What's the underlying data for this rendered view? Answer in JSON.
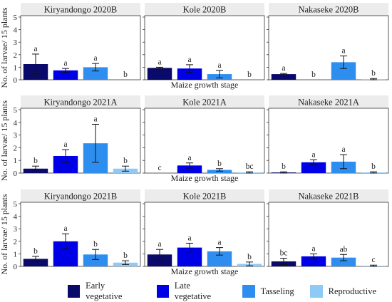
{
  "chart_data": {
    "type": "bar",
    "ylabel": "No. of larvae/ 15 plants",
    "xlabel": "Maize growth stage",
    "ylim": [
      0,
      5
    ],
    "yticks": [
      0,
      1,
      2,
      3,
      4,
      5
    ],
    "grid": false,
    "legend_position": "bottom",
    "stages": [
      "Early vegetative",
      "Late vegetative",
      "Tasseling",
      "Reproductive"
    ],
    "colors": [
      "#0a0a6b",
      "#0000e6",
      "#2e8ef0",
      "#8fcaf7"
    ],
    "panels": [
      {
        "title": "Kiryandongo 2020B",
        "values": [
          1.25,
          0.75,
          1.0,
          0.0
        ],
        "errors": [
          0.8,
          0.15,
          0.3,
          0.0
        ],
        "letters": [
          "a",
          "a",
          "a",
          "b"
        ]
      },
      {
        "title": "Kole 2020B",
        "values": [
          0.95,
          0.9,
          0.45,
          0.0
        ],
        "errors": [
          0.05,
          0.3,
          0.3,
          0.0
        ],
        "letters": [
          "a",
          "a",
          "a",
          "b"
        ]
      },
      {
        "title": "Nakaseke 2020B",
        "values": [
          0.45,
          0.0,
          1.4,
          0.05
        ],
        "errors": [
          0.05,
          0.0,
          0.5,
          0.05
        ],
        "letters": [
          "a",
          "b",
          "a",
          "b"
        ]
      },
      {
        "title": "Kiryandongo 2021A",
        "values": [
          0.35,
          1.35,
          2.35,
          0.35
        ],
        "errors": [
          0.2,
          0.5,
          1.5,
          0.2
        ],
        "letters": [
          "b",
          "a",
          "a",
          "b"
        ]
      },
      {
        "title": "Kole 2021A",
        "values": [
          0.0,
          0.6,
          0.25,
          0.05
        ],
        "errors": [
          0.0,
          0.2,
          0.1,
          0.05
        ],
        "letters": [
          "c",
          "a",
          "b",
          "bc"
        ]
      },
      {
        "title": "Nakaseke 2021A",
        "values": [
          0.05,
          0.85,
          0.9,
          0.05
        ],
        "errors": [
          0.05,
          0.2,
          0.55,
          0.05
        ],
        "letters": [
          "b",
          "a",
          "a",
          "b"
        ]
      },
      {
        "title": "Kiryandongo 2021B",
        "values": [
          0.6,
          2.0,
          0.95,
          0.3
        ],
        "errors": [
          0.2,
          0.6,
          0.4,
          0.15
        ],
        "letters": [
          "b",
          "a",
          "b",
          "b"
        ]
      },
      {
        "title": "Kole 2021B",
        "values": [
          0.95,
          1.5,
          1.2,
          0.2
        ],
        "errors": [
          0.4,
          0.35,
          0.3,
          0.15
        ],
        "letters": [
          "a",
          "a",
          "a",
          "b"
        ]
      },
      {
        "title": "Nakaseke 2021B",
        "values": [
          0.4,
          0.8,
          0.7,
          0.05
        ],
        "errors": [
          0.25,
          0.2,
          0.25,
          0.05
        ],
        "letters": [
          "bc",
          "a",
          "ab",
          "c"
        ]
      }
    ]
  }
}
